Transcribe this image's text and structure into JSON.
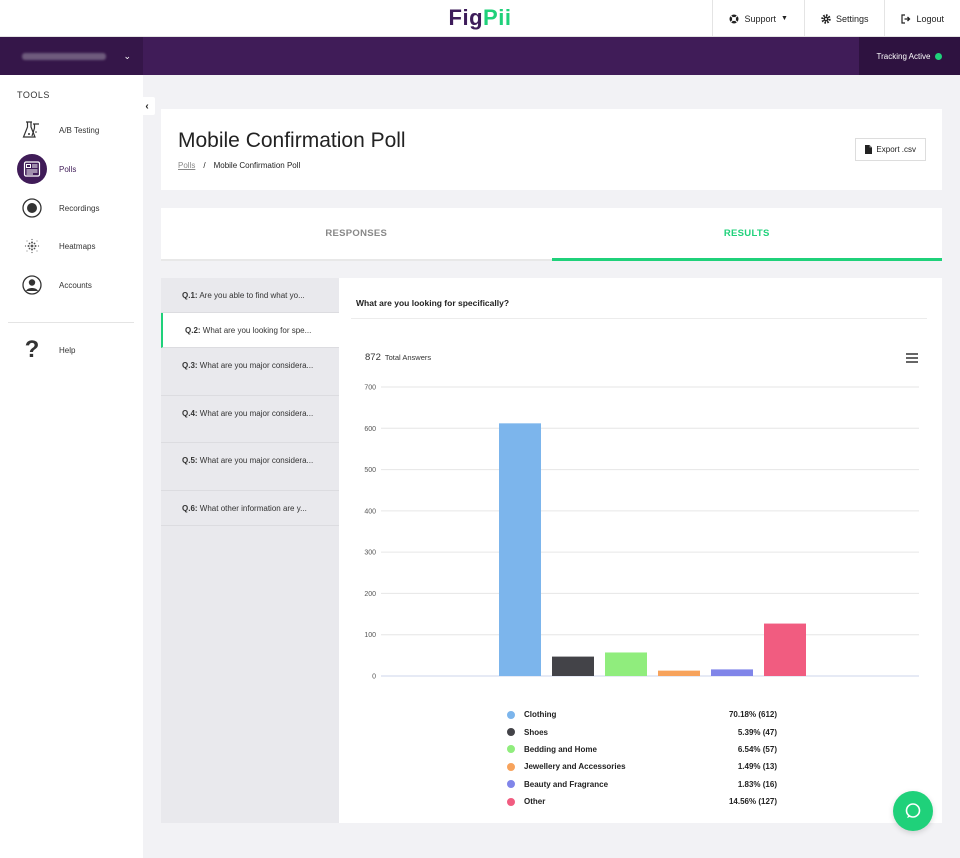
{
  "header": {
    "logo_part1": "Fig",
    "logo_part2": "Pii",
    "support_label": "Support",
    "settings_label": "Settings",
    "logout_label": "Logout"
  },
  "account_bar": {
    "account_name": "",
    "tracking_label": "Tracking Active"
  },
  "sidebar": {
    "tools_title": "TOOLS",
    "items": [
      {
        "label": "A/B Testing",
        "icon": "flask-icon"
      },
      {
        "label": "Polls",
        "icon": "poll-icon"
      },
      {
        "label": "Recordings",
        "icon": "record-icon"
      },
      {
        "label": "Heatmaps",
        "icon": "heatmap-icon"
      },
      {
        "label": "Accounts",
        "icon": "user-icon"
      },
      {
        "label": "Help",
        "icon": "help-icon"
      }
    ]
  },
  "page": {
    "title": "Mobile Confirmation Poll",
    "breadcrumb_link": "Polls",
    "breadcrumb_sep": "/",
    "breadcrumb_current": "Mobile Confirmation Poll",
    "export_label": "Export .csv"
  },
  "tabs": [
    {
      "label": "RESPONSES"
    },
    {
      "label": "RESULTS"
    }
  ],
  "questions": [
    {
      "num": "Q.1:",
      "text": "Are you able to find what yo..."
    },
    {
      "num": "Q.2:",
      "text": "What are you looking for spe..."
    },
    {
      "num": "Q.3:",
      "text": "What are you major considera..."
    },
    {
      "num": "Q.4:",
      "text": "What are you major considera..."
    },
    {
      "num": "Q.5:",
      "text": "What are you major considera..."
    },
    {
      "num": "Q.6:",
      "text": "What other information are y..."
    }
  ],
  "results": {
    "question_title": "What are you looking for specifically?",
    "total_number": "872",
    "total_label": "Total Answers"
  },
  "colors": {
    "brand_purple": "#401c58",
    "brand_green": "#1fd17a"
  },
  "chart_data": {
    "type": "bar",
    "categories": [
      "Clothing",
      "Shoes",
      "Bedding and Home",
      "Jewellery and Accessories",
      "Beauty and Fragrance",
      "Other"
    ],
    "values": [
      612,
      47,
      57,
      13,
      16,
      127
    ],
    "percent_labels": [
      "70.18% (612)",
      "5.39% (47)",
      "6.54% (57)",
      "1.49% (13)",
      "1.83% (16)",
      "14.56% (127)"
    ],
    "colors": [
      "#7cb5ec",
      "#434348",
      "#90ed7d",
      "#f7a35c",
      "#8085e9",
      "#f15c80"
    ],
    "yticks": [
      0,
      100,
      200,
      300,
      400,
      500,
      600,
      700
    ],
    "ylim": [
      0,
      700
    ],
    "grid": true,
    "legend_position": "bottom"
  }
}
